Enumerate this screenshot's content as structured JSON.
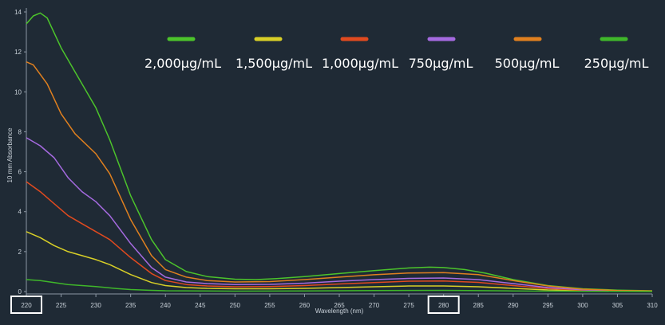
{
  "chart_data": {
    "type": "line",
    "title": "",
    "xlabel": "Wavelength (nm)",
    "ylabel": "10 mm Absorbance",
    "xlim": [
      220,
      310
    ],
    "ylim": [
      0,
      14
    ],
    "x_ticks": [
      220,
      225,
      230,
      235,
      240,
      245,
      250,
      255,
      260,
      265,
      270,
      275,
      280,
      285,
      290,
      295,
      300,
      305,
      310
    ],
    "y_ticks": [
      0,
      2,
      4,
      6,
      8,
      10,
      12,
      14
    ],
    "legend_position": "top",
    "grid": false,
    "highlighted_x_ticks": [
      220,
      280
    ],
    "series": [
      {
        "name": "2,000μg/mL",
        "color": "#4cc42b",
        "points": [
          [
            220,
            13.4
          ],
          [
            221,
            13.8
          ],
          [
            222,
            13.95
          ],
          [
            223,
            13.7
          ],
          [
            225,
            12.2
          ],
          [
            227,
            11.0
          ],
          [
            230,
            9.2
          ],
          [
            232,
            7.6
          ],
          [
            235,
            4.8
          ],
          [
            238,
            2.6
          ],
          [
            240,
            1.6
          ],
          [
            243,
            1.0
          ],
          [
            246,
            0.75
          ],
          [
            250,
            0.62
          ],
          [
            253,
            0.6
          ],
          [
            256,
            0.65
          ],
          [
            260,
            0.75
          ],
          [
            265,
            0.9
          ],
          [
            270,
            1.05
          ],
          [
            275,
            1.18
          ],
          [
            278,
            1.22
          ],
          [
            280,
            1.2
          ],
          [
            283,
            1.1
          ],
          [
            286,
            0.92
          ],
          [
            290,
            0.6
          ],
          [
            295,
            0.3
          ],
          [
            300,
            0.14
          ],
          [
            305,
            0.07
          ],
          [
            310,
            0.04
          ]
        ]
      },
      {
        "name": "1,500μg/mL",
        "color": "#d8cf27",
        "points": [
          [
            220,
            3.0
          ],
          [
            222,
            2.7
          ],
          [
            224,
            2.3
          ],
          [
            226,
            2.0
          ],
          [
            228,
            1.8
          ],
          [
            230,
            1.6
          ],
          [
            232,
            1.35
          ],
          [
            235,
            0.85
          ],
          [
            238,
            0.45
          ],
          [
            240,
            0.3
          ],
          [
            243,
            0.2
          ],
          [
            246,
            0.16
          ],
          [
            250,
            0.14
          ],
          [
            255,
            0.14
          ],
          [
            260,
            0.16
          ],
          [
            265,
            0.2
          ],
          [
            270,
            0.24
          ],
          [
            275,
            0.28
          ],
          [
            280,
            0.28
          ],
          [
            285,
            0.24
          ],
          [
            290,
            0.16
          ],
          [
            295,
            0.08
          ],
          [
            300,
            0.04
          ],
          [
            305,
            0.02
          ],
          [
            310,
            0.01
          ]
        ]
      },
      {
        "name": "1,000μg/mL",
        "color": "#e04a1f",
        "points": [
          [
            220,
            5.5
          ],
          [
            222,
            5.0
          ],
          [
            224,
            4.4
          ],
          [
            226,
            3.8
          ],
          [
            228,
            3.4
          ],
          [
            230,
            3.0
          ],
          [
            232,
            2.6
          ],
          [
            235,
            1.7
          ],
          [
            238,
            0.9
          ],
          [
            240,
            0.55
          ],
          [
            243,
            0.35
          ],
          [
            246,
            0.28
          ],
          [
            250,
            0.24
          ],
          [
            255,
            0.25
          ],
          [
            260,
            0.3
          ],
          [
            265,
            0.38
          ],
          [
            270,
            0.45
          ],
          [
            275,
            0.52
          ],
          [
            280,
            0.53
          ],
          [
            285,
            0.46
          ],
          [
            290,
            0.3
          ],
          [
            295,
            0.15
          ],
          [
            300,
            0.07
          ],
          [
            305,
            0.03
          ],
          [
            310,
            0.02
          ]
        ]
      },
      {
        "name": "750μg/mL",
        "color": "#a56ae0",
        "points": [
          [
            220,
            7.7
          ],
          [
            222,
            7.3
          ],
          [
            224,
            6.7
          ],
          [
            226,
            5.7
          ],
          [
            228,
            5.0
          ],
          [
            230,
            4.5
          ],
          [
            232,
            3.8
          ],
          [
            235,
            2.4
          ],
          [
            238,
            1.2
          ],
          [
            240,
            0.72
          ],
          [
            243,
            0.48
          ],
          [
            246,
            0.4
          ],
          [
            250,
            0.35
          ],
          [
            255,
            0.36
          ],
          [
            260,
            0.42
          ],
          [
            265,
            0.52
          ],
          [
            270,
            0.6
          ],
          [
            275,
            0.66
          ],
          [
            280,
            0.68
          ],
          [
            285,
            0.6
          ],
          [
            290,
            0.4
          ],
          [
            295,
            0.2
          ],
          [
            300,
            0.09
          ],
          [
            305,
            0.04
          ],
          [
            310,
            0.02
          ]
        ]
      },
      {
        "name": "500μg/mL",
        "color": "#e0801f",
        "points": [
          [
            220,
            11.5
          ],
          [
            221,
            11.35
          ],
          [
            223,
            10.4
          ],
          [
            225,
            8.9
          ],
          [
            227,
            7.9
          ],
          [
            230,
            6.9
          ],
          [
            232,
            5.9
          ],
          [
            235,
            3.6
          ],
          [
            238,
            1.8
          ],
          [
            240,
            1.1
          ],
          [
            243,
            0.72
          ],
          [
            246,
            0.55
          ],
          [
            250,
            0.48
          ],
          [
            255,
            0.5
          ],
          [
            260,
            0.6
          ],
          [
            265,
            0.72
          ],
          [
            270,
            0.84
          ],
          [
            275,
            0.93
          ],
          [
            280,
            0.95
          ],
          [
            285,
            0.85
          ],
          [
            290,
            0.55
          ],
          [
            295,
            0.28
          ],
          [
            300,
            0.12
          ],
          [
            305,
            0.05
          ],
          [
            310,
            0.03
          ]
        ]
      },
      {
        "name": "250μg/mL",
        "color": "#3fb72a",
        "points": [
          [
            220,
            0.6
          ],
          [
            222,
            0.55
          ],
          [
            224,
            0.45
          ],
          [
            226,
            0.35
          ],
          [
            230,
            0.25
          ],
          [
            233,
            0.15
          ],
          [
            235,
            0.1
          ],
          [
            238,
            0.06
          ],
          [
            240,
            0.04
          ],
          [
            245,
            0.03
          ],
          [
            250,
            0.02
          ],
          [
            260,
            0.03
          ],
          [
            270,
            0.05
          ],
          [
            280,
            0.06
          ],
          [
            290,
            0.03
          ],
          [
            300,
            0.01
          ],
          [
            310,
            0.0
          ]
        ]
      }
    ]
  }
}
